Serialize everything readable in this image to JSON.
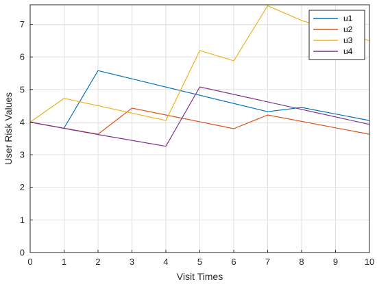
{
  "chart_data": {
    "type": "line",
    "title": "",
    "xlabel": "Visit Times",
    "ylabel": "User Risk Values",
    "xlim": [
      0,
      10
    ],
    "ylim": [
      0,
      7.6
    ],
    "xticks": [
      0,
      1,
      2,
      3,
      4,
      5,
      6,
      7,
      8,
      9,
      10
    ],
    "yticks": [
      0,
      1,
      2,
      3,
      4,
      5,
      6,
      7
    ],
    "grid": true,
    "legend_position": "top-right",
    "series": [
      {
        "name": "u1",
        "color": "#0072BD",
        "points": [
          [
            1,
            3.82
          ],
          [
            2,
            5.58
          ],
          [
            7,
            4.32
          ],
          [
            8,
            4.45
          ],
          [
            10,
            4.05
          ]
        ]
      },
      {
        "name": "u2",
        "color": "#D95319",
        "points": [
          [
            0,
            4.0
          ],
          [
            2,
            3.63
          ],
          [
            3,
            4.43
          ],
          [
            6,
            3.8
          ],
          [
            7,
            4.22
          ],
          [
            10,
            3.63
          ]
        ]
      },
      {
        "name": "u3",
        "color": "#EDB120",
        "points": [
          [
            0,
            4.0
          ],
          [
            1,
            4.73
          ],
          [
            4,
            4.05
          ],
          [
            5,
            6.2
          ],
          [
            6,
            5.88
          ],
          [
            7,
            7.57
          ],
          [
            8,
            7.12
          ],
          [
            10,
            6.5
          ]
        ]
      },
      {
        "name": "u4",
        "color": "#7E2F8E",
        "points": [
          [
            0,
            4.0
          ],
          [
            2,
            3.62
          ],
          [
            4,
            3.26
          ],
          [
            5,
            5.08
          ],
          [
            10,
            3.93
          ]
        ]
      }
    ]
  }
}
